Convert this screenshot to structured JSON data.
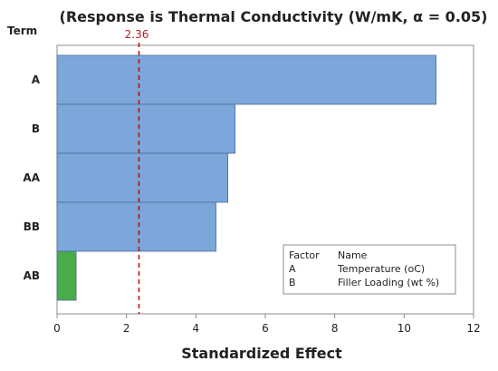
{
  "chart_data": {
    "type": "bar",
    "orientation": "horizontal",
    "title": "(Response is Thermal Conductivity (W/mK, α = 0.05)",
    "xlabel": "Standardized Effect",
    "ylabel": "Term",
    "categories": [
      "A",
      "B",
      "AA",
      "BB",
      "AB"
    ],
    "values": [
      10.92,
      5.13,
      4.92,
      4.58,
      0.55
    ],
    "bar_colors": [
      "#7ba7da",
      "#7ba7da",
      "#7ba7da",
      "#7ba7da",
      "#4aab4a"
    ],
    "xlim": [
      0,
      12
    ],
    "xticks": [
      0,
      2,
      4,
      6,
      8,
      10,
      12
    ],
    "grid": false,
    "reference_line": {
      "value": 2.36,
      "label": "2.36",
      "color": "#cc0000",
      "style": "dashed"
    },
    "legend": {
      "position": "bottom-right",
      "header": [
        "Factor",
        "Name"
      ],
      "rows": [
        [
          "A",
          "Temperature (oC)"
        ],
        [
          "B",
          "Filler Loading (wt %)"
        ]
      ]
    }
  }
}
